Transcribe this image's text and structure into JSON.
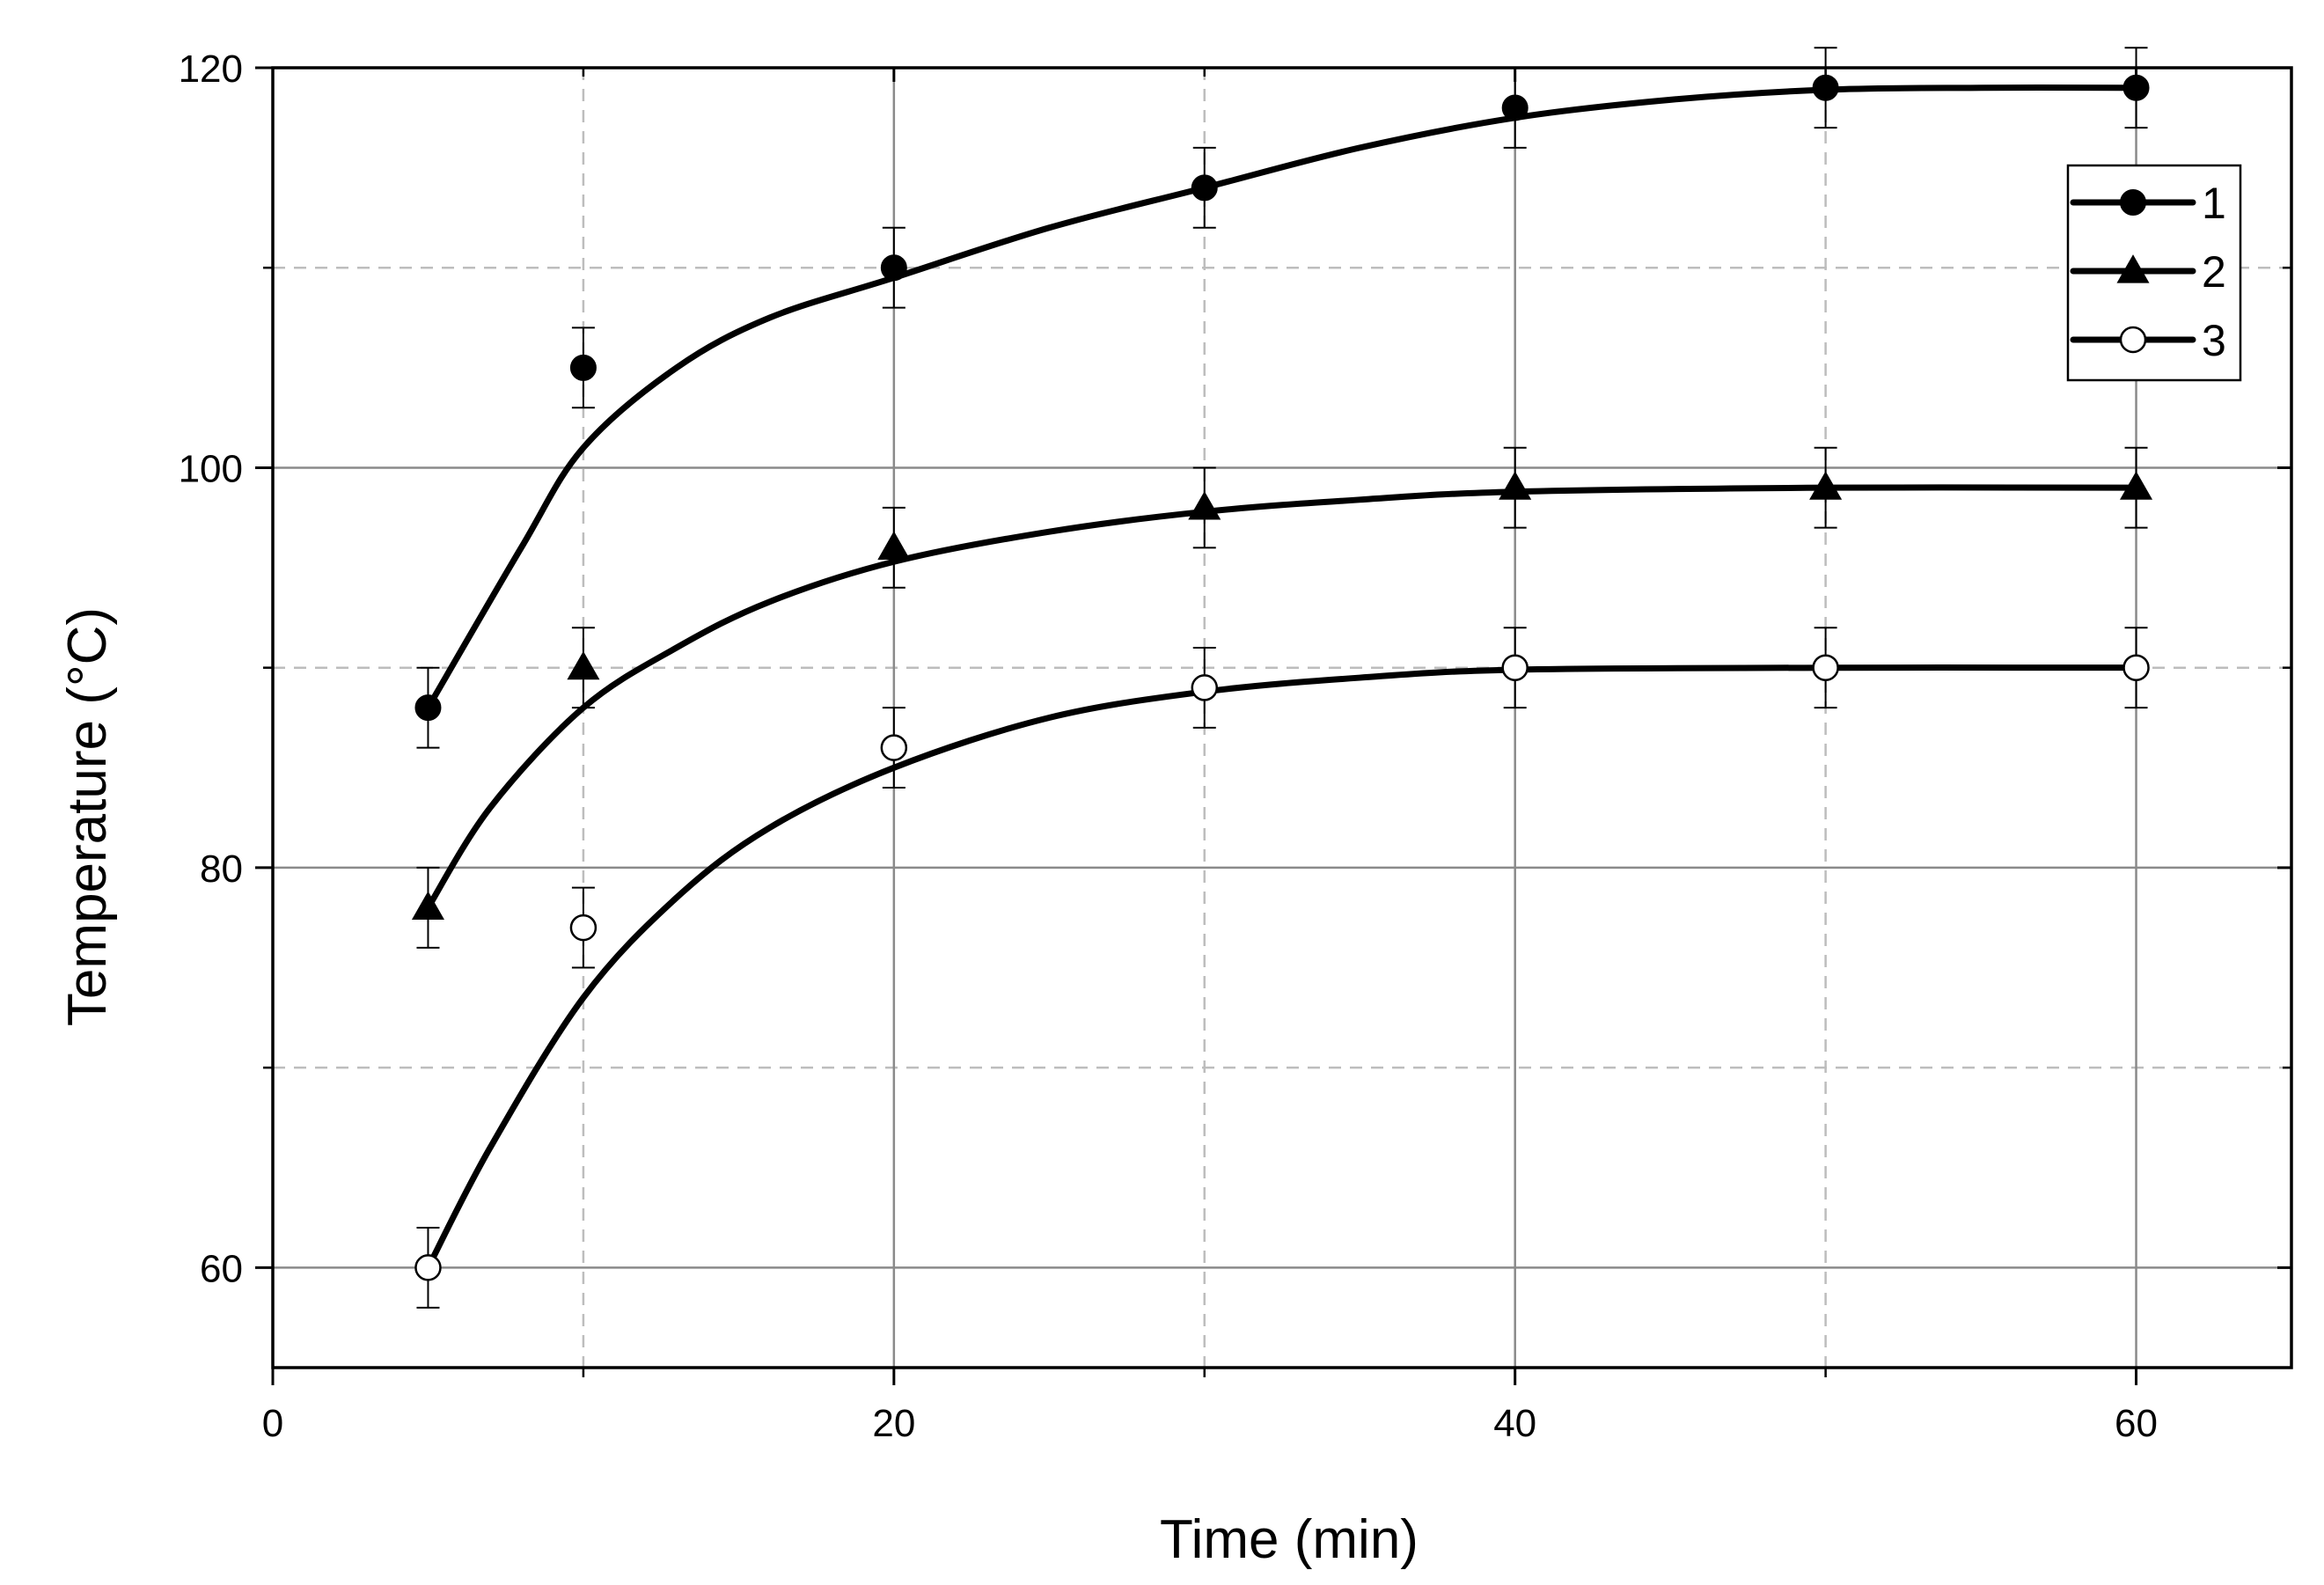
{
  "chart_data": {
    "type": "scatter",
    "xlabel": "Time (min)",
    "ylabel": "Temperature (°C)",
    "xlim": [
      0,
      65
    ],
    "ylim": [
      55,
      120
    ],
    "x_ticks": [
      0,
      20,
      40,
      60
    ],
    "y_ticks": [
      60,
      80,
      100,
      120
    ],
    "x_grid_major": [
      20,
      40,
      60
    ],
    "x_grid_minor": [
      10,
      30,
      50
    ],
    "y_grid_major": [
      60,
      80,
      100
    ],
    "y_grid_minor": [
      70,
      90,
      110
    ],
    "grid": true,
    "fit_curves": true,
    "legend_position": "top-right",
    "error_bar": 2,
    "series": [
      {
        "name": "1",
        "marker": "filled-circle",
        "x": [
          5,
          10,
          20,
          30,
          40,
          50,
          60
        ],
        "y": [
          88,
          105,
          110,
          114,
          118,
          119,
          119
        ],
        "fit": {
          "x": [
            5,
            8,
            10,
            13,
            16,
            20,
            25,
            30,
            35,
            40,
            45,
            50,
            55,
            60
          ],
          "y": [
            88,
            96,
            101,
            105,
            107.5,
            109.5,
            112,
            114,
            116,
            117.5,
            118.4,
            118.9,
            119,
            119
          ]
        }
      },
      {
        "name": "2",
        "marker": "filled-triangle",
        "x": [
          5,
          10,
          20,
          30,
          40,
          50,
          60
        ],
        "y": [
          78,
          90,
          96,
          98,
          99,
          99,
          99
        ],
        "fit": {
          "x": [
            5,
            7,
            10,
            13,
            16,
            20,
            25,
            30,
            35,
            40,
            50,
            60
          ],
          "y": [
            78,
            83,
            88,
            91,
            93.3,
            95.3,
            96.8,
            97.8,
            98.4,
            98.8,
            99,
            99
          ]
        }
      },
      {
        "name": "3",
        "marker": "open-circle",
        "x": [
          5,
          10,
          20,
          30,
          40,
          50,
          60
        ],
        "y": [
          60,
          77,
          86,
          89,
          90,
          90,
          90
        ],
        "fit": {
          "x": [
            5,
            7,
            10,
            13,
            16,
            20,
            25,
            30,
            35,
            40,
            50,
            60
          ],
          "y": [
            60,
            66,
            73.5,
            78.5,
            82,
            85,
            87.5,
            88.8,
            89.5,
            89.9,
            90,
            90
          ]
        }
      }
    ]
  }
}
